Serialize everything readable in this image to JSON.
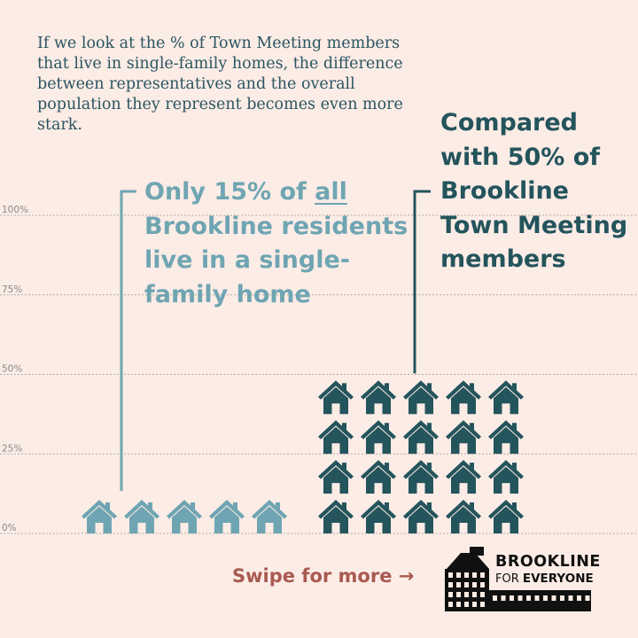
{
  "intro_text": "If we look at the % of Town Meeting members that live in single-family homes, the difference between representatives and the overall population they represent becomes even more stark.",
  "callouts": {
    "left": {
      "pre": "Only 15% of ",
      "emph": "all",
      "post": " Brookline residents live in a single-family home",
      "color": "#6fa5b2"
    },
    "right": {
      "text": "Compared with 50% of Brookline Town Meeting members",
      "color": "#24545c"
    }
  },
  "footer": {
    "swipe": "Swipe for more →"
  },
  "logo": {
    "line1": "BROOKLINE",
    "line2_pre": "FOR ",
    "line2_bold": "EVERYONE"
  },
  "chart_data": {
    "type": "bar",
    "encoding": "pictogram (houses)",
    "categories": [
      "all Brookline residents",
      "Brookline Town Meeting members"
    ],
    "values": [
      15,
      50
    ],
    "unit": "%",
    "yticks": [
      "100%",
      "75%",
      "50%",
      "25%",
      "0%"
    ],
    "ylim": [
      0,
      100
    ],
    "grid": true,
    "colors": [
      "#6fa5b2",
      "#24545c"
    ]
  }
}
